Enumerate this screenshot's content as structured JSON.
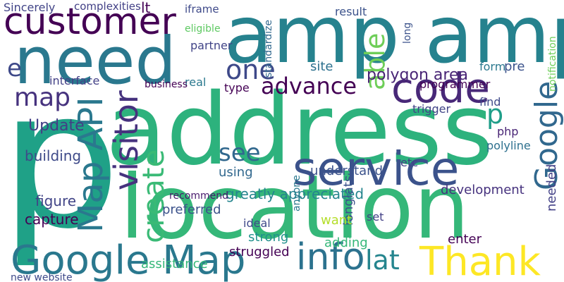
{
  "words": [
    "amp amp",
    "address",
    "p",
    "location",
    "need",
    "customer",
    "service",
    "Google Map",
    "Thank",
    "info",
    "code",
    "Map API",
    "visitor",
    "create",
    "Google",
    "able",
    "advance",
    "one",
    "map",
    "see",
    "e",
    "lat",
    "polygon area",
    "Update",
    "greatly appreciated",
    "site",
    "understand",
    "interface",
    "building",
    "figure",
    "capture",
    "Sincerely",
    "complexities",
    "iframe",
    "result",
    "eligible",
    "partner",
    "programmer",
    "trigger",
    "find",
    "form",
    "pre",
    "php",
    "polyline",
    "needed",
    "development",
    "longlats",
    "want",
    "set",
    "adding",
    "enter",
    "struggled",
    "strong",
    "ideal",
    "preferred",
    "recommend",
    "assistance",
    "new website",
    "type",
    "real",
    "business",
    "using",
    "anyone",
    "etc",
    "p",
    "lt",
    "long",
    "notification",
    "standardize"
  ]
}
